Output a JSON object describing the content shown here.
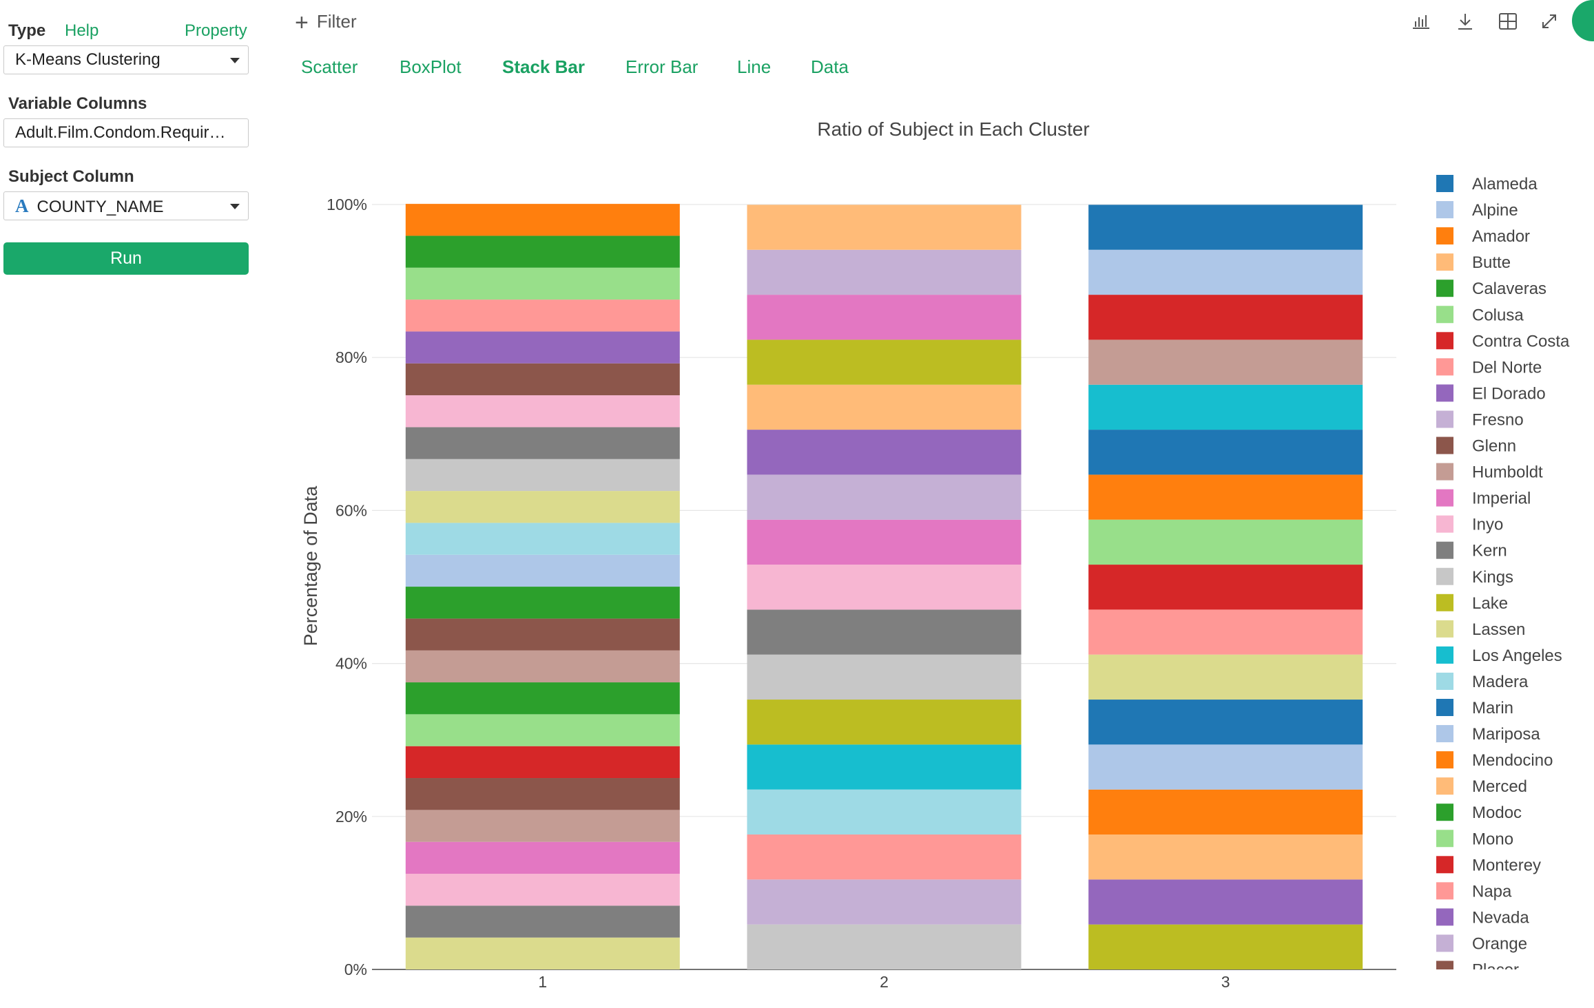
{
  "left_panel": {
    "type_label": "Type",
    "help_link": "Help",
    "property_link": "Property",
    "type_select": "K-Means Clustering",
    "variable_columns_label": "Variable Columns",
    "variable_columns_value": "Adult.Film.Condom.Requir…",
    "subject_column_label": "Subject Column",
    "subject_column_type_glyph": "A",
    "subject_column_value": "COUNTY_NAME",
    "run_button": "Run"
  },
  "top_bar": {
    "filter_label": "Filter",
    "tabs": [
      "Scatter",
      "BoxPlot",
      "Stack Bar",
      "Error Bar",
      "Line",
      "Data"
    ],
    "active_tab": "Stack Bar",
    "tool_icons": [
      "bar-chart-icon",
      "download-icon",
      "grid-icon",
      "expand-icon"
    ]
  },
  "colors": {
    "accent": "#1aa162",
    "run_button": "#1aa86a"
  },
  "chart_data": {
    "type": "bar",
    "stacked": true,
    "title": "Ratio of Subject in Each Cluster",
    "xlabel": "",
    "ylabel": "Percentage of Data",
    "categories": [
      "1",
      "2",
      "3"
    ],
    "ylim": [
      0,
      100
    ],
    "ytick_labels": [
      "0%",
      "20%",
      "40%",
      "60%",
      "80%",
      "100%"
    ],
    "grid": true,
    "legend_position": "right",
    "legend": [
      {
        "name": "Alameda",
        "color": "#1f77b4"
      },
      {
        "name": "Alpine",
        "color": "#aec7e8"
      },
      {
        "name": "Amador",
        "color": "#ff7f0e"
      },
      {
        "name": "Butte",
        "color": "#ffbb78"
      },
      {
        "name": "Calaveras",
        "color": "#2ca02c"
      },
      {
        "name": "Colusa",
        "color": "#98df8a"
      },
      {
        "name": "Contra Costa",
        "color": "#d62728"
      },
      {
        "name": "Del Norte",
        "color": "#ff9896"
      },
      {
        "name": "El Dorado",
        "color": "#9467bd"
      },
      {
        "name": "Fresno",
        "color": "#c5b0d5"
      },
      {
        "name": "Glenn",
        "color": "#8c564b"
      },
      {
        "name": "Humboldt",
        "color": "#c49c94"
      },
      {
        "name": "Imperial",
        "color": "#e377c2"
      },
      {
        "name": "Inyo",
        "color": "#f7b6d2"
      },
      {
        "name": "Kern",
        "color": "#7f7f7f"
      },
      {
        "name": "Kings",
        "color": "#c7c7c7"
      },
      {
        "name": "Lake",
        "color": "#bcbd22"
      },
      {
        "name": "Lassen",
        "color": "#dbdb8d"
      },
      {
        "name": "Los Angeles",
        "color": "#17becf"
      },
      {
        "name": "Madera",
        "color": "#9edae5"
      },
      {
        "name": "Marin",
        "color": "#1f77b4"
      },
      {
        "name": "Mariposa",
        "color": "#aec7e8"
      },
      {
        "name": "Mendocino",
        "color": "#ff7f0e"
      },
      {
        "name": "Merced",
        "color": "#ffbb78"
      },
      {
        "name": "Modoc",
        "color": "#2ca02c"
      },
      {
        "name": "Mono",
        "color": "#98df8a"
      },
      {
        "name": "Monterey",
        "color": "#d62728"
      },
      {
        "name": "Napa",
        "color": "#ff9896"
      },
      {
        "name": "Nevada",
        "color": "#9467bd"
      },
      {
        "name": "Orange",
        "color": "#c5b0d5"
      },
      {
        "name": "Placer",
        "color": "#8c564b"
      }
    ],
    "stacks": [
      {
        "category": "1",
        "segments_bottom_to_top": [
          {
            "color": "#dbdb8d",
            "value": 4.17
          },
          {
            "color": "#7f7f7f",
            "value": 4.17
          },
          {
            "color": "#f7b6d2",
            "value": 4.17
          },
          {
            "color": "#e377c2",
            "value": 4.17
          },
          {
            "color": "#c49c94",
            "value": 4.17
          },
          {
            "color": "#8c564b",
            "value": 4.17
          },
          {
            "color": "#d62728",
            "value": 4.17
          },
          {
            "color": "#98df8a",
            "value": 4.17
          },
          {
            "color": "#2ca02c",
            "value": 4.17
          },
          {
            "color": "#c49c94",
            "value": 4.17
          },
          {
            "color": "#8c564b",
            "value": 4.17
          },
          {
            "color": "#2ca02c",
            "value": 4.17
          },
          {
            "color": "#aec7e8",
            "value": 4.17
          },
          {
            "color": "#9edae5",
            "value": 4.17
          },
          {
            "color": "#dbdb8d",
            "value": 4.17
          },
          {
            "color": "#c7c7c7",
            "value": 4.17
          },
          {
            "color": "#7f7f7f",
            "value": 4.17
          },
          {
            "color": "#f7b6d2",
            "value": 4.17
          },
          {
            "color": "#8c564b",
            "value": 4.17
          },
          {
            "color": "#9467bd",
            "value": 4.17
          },
          {
            "color": "#ff9896",
            "value": 4.17
          },
          {
            "color": "#98df8a",
            "value": 4.17
          },
          {
            "color": "#2ca02c",
            "value": 4.17
          },
          {
            "color": "#ff7f0e",
            "value": 4.17
          }
        ]
      },
      {
        "category": "2",
        "segments_bottom_to_top": [
          {
            "color": "#c7c7c7",
            "value": 5.88
          },
          {
            "color": "#c5b0d5",
            "value": 5.88
          },
          {
            "color": "#ff9896",
            "value": 5.88
          },
          {
            "color": "#9edae5",
            "value": 5.88
          },
          {
            "color": "#17becf",
            "value": 5.88
          },
          {
            "color": "#bcbd22",
            "value": 5.88
          },
          {
            "color": "#c7c7c7",
            "value": 5.88
          },
          {
            "color": "#7f7f7f",
            "value": 5.88
          },
          {
            "color": "#f7b6d2",
            "value": 5.88
          },
          {
            "color": "#e377c2",
            "value": 5.88
          },
          {
            "color": "#c5b0d5",
            "value": 5.88
          },
          {
            "color": "#9467bd",
            "value": 5.88
          },
          {
            "color": "#ffbb78",
            "value": 5.88
          },
          {
            "color": "#bcbd22",
            "value": 5.88
          },
          {
            "color": "#e377c2",
            "value": 5.88
          },
          {
            "color": "#c5b0d5",
            "value": 5.88
          },
          {
            "color": "#ffbb78",
            "value": 5.88
          }
        ]
      },
      {
        "category": "3",
        "segments_bottom_to_top": [
          {
            "color": "#bcbd22",
            "value": 5.88
          },
          {
            "color": "#9467bd",
            "value": 5.88
          },
          {
            "color": "#ffbb78",
            "value": 5.88
          },
          {
            "color": "#ff7f0e",
            "value": 5.88
          },
          {
            "color": "#aec7e8",
            "value": 5.88
          },
          {
            "color": "#1f77b4",
            "value": 5.88
          },
          {
            "color": "#dbdb8d",
            "value": 5.88
          },
          {
            "color": "#ff9896",
            "value": 5.88
          },
          {
            "color": "#d62728",
            "value": 5.88
          },
          {
            "color": "#98df8a",
            "value": 5.88
          },
          {
            "color": "#ff7f0e",
            "value": 5.88
          },
          {
            "color": "#1f77b4",
            "value": 5.88
          },
          {
            "color": "#17becf",
            "value": 5.88
          },
          {
            "color": "#c49c94",
            "value": 5.88
          },
          {
            "color": "#d62728",
            "value": 5.88
          },
          {
            "color": "#aec7e8",
            "value": 5.88
          },
          {
            "color": "#1f77b4",
            "value": 5.88
          }
        ]
      }
    ]
  }
}
